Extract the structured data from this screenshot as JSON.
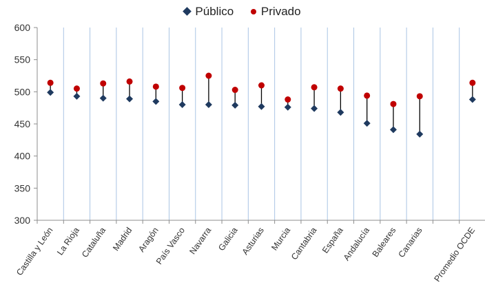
{
  "legend": {
    "publico_label": "Público",
    "privado_label": "Privado"
  },
  "chart_data": {
    "type": "scatter",
    "categories": [
      "Castilla y León",
      "La Rioja",
      "Cataluña",
      "Madrid",
      "Aragón",
      "País Vasco",
      "Navarra",
      "Galicia",
      "Asturias",
      "Murcia",
      "Cantabria",
      "España",
      "Andalucía",
      "Baleares",
      "Canarias",
      "",
      "Promedio OCDE"
    ],
    "series": [
      {
        "name": "Público",
        "color": "#1f3a5f",
        "marker": "diamond",
        "values": [
          499,
          493,
          490,
          489,
          485,
          480,
          480,
          479,
          477,
          476,
          474,
          468,
          451,
          441,
          434,
          null,
          488
        ]
      },
      {
        "name": "Privado",
        "color": "#c00000",
        "marker": "circle",
        "values": [
          514,
          505,
          513,
          516,
          508,
          506,
          525,
          503,
          510,
          488,
          507,
          505,
          494,
          481,
          493,
          null,
          514
        ]
      }
    ],
    "ylim": [
      300,
      600
    ],
    "yticks": [
      300,
      350,
      400,
      450,
      500,
      550,
      600
    ],
    "grid": "vertical",
    "legend_position": "top"
  }
}
